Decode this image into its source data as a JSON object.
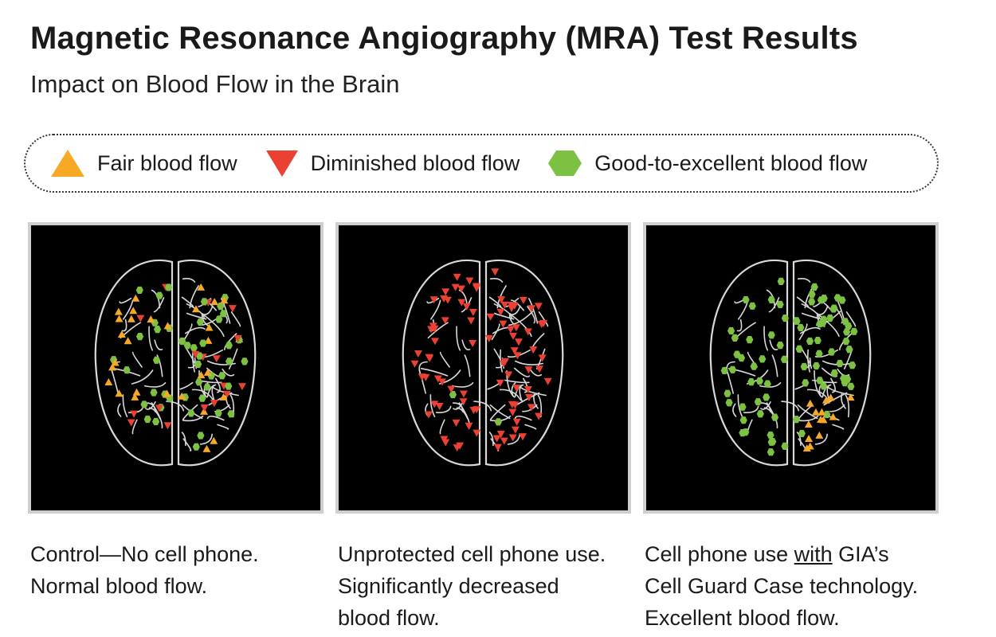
{
  "title": "Magnetic Resonance Angiography (MRA) Test Results",
  "subtitle": "Impact on Blood Flow in the Brain",
  "colors": {
    "fair": "#f7a826",
    "diminished": "#ea4133",
    "good": "#7dc143",
    "panel_bg": "#000000",
    "vessel": "#d9d9d9"
  },
  "legend": [
    {
      "icon": "triangle-up-icon",
      "color": "#f7a826",
      "label": "Fair blood flow"
    },
    {
      "icon": "triangle-down-icon",
      "color": "#ea4133",
      "label": "Diminished blood flow"
    },
    {
      "icon": "hexagon-icon",
      "color": "#7dc143",
      "label": "Good-to-excellent blood flow"
    }
  ],
  "panels": [
    {
      "scenario": "control",
      "caption": {
        "line1": "Control—No cell phone.",
        "line2": "Normal blood flow.",
        "line3": ""
      },
      "marker_mix": {
        "fair": 0.32,
        "diminished": 0.33,
        "good": 0.35
      }
    },
    {
      "scenario": "unprotected",
      "caption": {
        "line1": "Unprotected cell phone use.",
        "line2": "Significantly decreased",
        "line3": "blood flow."
      },
      "marker_mix": {
        "fair": 0.0,
        "diminished": 0.97,
        "good": 0.03
      }
    },
    {
      "scenario": "protected",
      "caption": {
        "line1_pre": "Cell phone use ",
        "line1_u": "with",
        "line1_post": " GIA’s",
        "line2": "Cell Guard Case technology.",
        "line3": "Excellent blood flow."
      },
      "marker_mix": {
        "fair": 0.2,
        "diminished": 0.0,
        "good": 0.8
      }
    }
  ]
}
